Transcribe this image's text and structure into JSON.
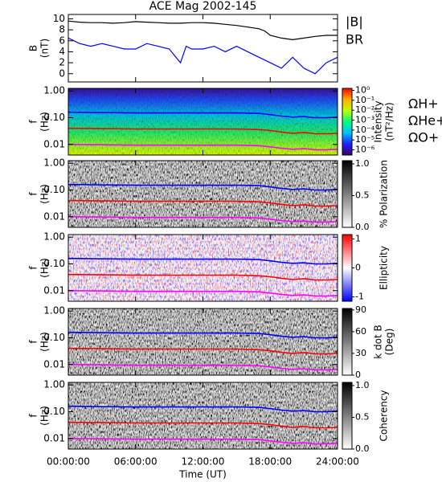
{
  "chart_data": [
    {
      "type": "line",
      "title": "ACE Mag 2002-145",
      "ylabel": [
        "B",
        "(nT)"
      ],
      "xlim": [
        0,
        24
      ],
      "xticks": [
        0,
        6,
        12,
        18,
        24
      ],
      "ylim": [
        -1.5,
        10.8
      ],
      "yticks": [
        0,
        2,
        4,
        6,
        8,
        10
      ],
      "series": [
        {
          "name": "|B|",
          "color": "#000000",
          "x": [
            0,
            1,
            2,
            3,
            4,
            5,
            6,
            7,
            8,
            9,
            10,
            11,
            12,
            13,
            14,
            15,
            16,
            17,
            17.5,
            18,
            19,
            20,
            21,
            22,
            23,
            24
          ],
          "values": [
            9.6,
            9.4,
            9.3,
            9.3,
            9.2,
            9.3,
            9.5,
            9.4,
            9.3,
            9.2,
            9.2,
            9.3,
            9.3,
            9.2,
            9.0,
            8.8,
            8.5,
            8.2,
            7.8,
            7.0,
            6.5,
            6.2,
            6.5,
            6.8,
            7.0,
            7.0
          ]
        },
        {
          "name": "BR",
          "color": "#0000ff",
          "x": [
            0,
            1,
            2,
            3,
            4,
            5,
            6,
            7,
            8,
            9,
            10,
            10.5,
            11,
            12,
            13,
            14,
            15,
            16,
            17,
            18,
            19,
            20,
            21,
            22,
            23,
            24
          ],
          "values": [
            6.5,
            5.5,
            5.0,
            5.5,
            5.0,
            4.5,
            4.5,
            5.5,
            5.0,
            4.5,
            2.0,
            5.0,
            4.5,
            4.5,
            5.0,
            4.0,
            5.0,
            4.0,
            3.0,
            2.0,
            1.0,
            3.0,
            1.0,
            0.0,
            2.0,
            3.0
          ]
        }
      ]
    },
    {
      "type": "spectrogram",
      "ylabel": [
        "f",
        "(Hz)"
      ],
      "xlim": [
        0,
        24
      ],
      "xticks": [
        0,
        6,
        12,
        18,
        24
      ],
      "ylim": [
        0.004,
        1.25
      ],
      "yscale": "log",
      "yticks": [
        {
          "value": 1,
          "label": "1.00"
        },
        {
          "value": 0.1,
          "label": "0.10"
        },
        {
          "value": 0.01,
          "label": "0.01"
        }
      ],
      "colorbar": {
        "label": [
          "Intensity",
          "(nT²/Hz)"
        ],
        "lim": [
          3e-07,
          1.6
        ],
        "scale": "log",
        "ticks": [
          {
            "value": 1,
            "label": "10⁰"
          },
          {
            "value": 0.1,
            "label": "10⁻¹"
          },
          {
            "value": 0.01,
            "label": "10⁻²"
          },
          {
            "value": 0.001,
            "label": "10⁻³"
          },
          {
            "value": 0.0001,
            "label": "10⁻⁴"
          },
          {
            "value": 1e-05,
            "label": "10⁻⁵"
          },
          {
            "value": 1e-06,
            "label": "10⁻⁶"
          }
        ],
        "colormap": [
          "#3a0060",
          "#2020ff",
          "#00c0ff",
          "#00ff80",
          "#c0ff00",
          "#ffb000",
          "#ff0000"
        ]
      },
      "series": [
        {
          "name": "ΩH+",
          "color": "#0000ff",
          "x": [
            0,
            3,
            6,
            9,
            12,
            15,
            17,
            18,
            19,
            20,
            21,
            22,
            23,
            24
          ],
          "values": [
            0.16,
            0.155,
            0.15,
            0.15,
            0.15,
            0.15,
            0.145,
            0.13,
            0.115,
            0.105,
            0.11,
            0.1,
            0.1,
            0.105
          ]
        },
        {
          "name": "ΩHe+",
          "color": "#ff0000",
          "x": [
            0,
            3,
            6,
            9,
            12,
            15,
            17,
            18,
            19,
            20,
            21,
            22,
            23,
            24
          ],
          "values": [
            0.04,
            0.039,
            0.038,
            0.038,
            0.038,
            0.038,
            0.036,
            0.033,
            0.029,
            0.026,
            0.028,
            0.025,
            0.025,
            0.026
          ]
        },
        {
          "name": "ΩO+",
          "color": "#ff00ff",
          "x": [
            0,
            3,
            6,
            9,
            12,
            15,
            17,
            18,
            19,
            20,
            21,
            22,
            23,
            24
          ],
          "values": [
            0.01,
            0.0097,
            0.0094,
            0.0094,
            0.0094,
            0.0094,
            0.009,
            0.0081,
            0.0072,
            0.0066,
            0.0069,
            0.0063,
            0.0063,
            0.0066
          ]
        }
      ]
    },
    {
      "type": "spectrogram",
      "ylabel": [
        "f",
        "(Hz)"
      ],
      "xlim": [
        0,
        24
      ],
      "xticks": [
        0,
        6,
        12,
        18,
        24
      ],
      "ylim": [
        0.004,
        1.25
      ],
      "yscale": "log",
      "yticks": [
        {
          "value": 1,
          "label": "1.00"
        },
        {
          "value": 0.1,
          "label": "0.10"
        },
        {
          "value": 0.01,
          "label": "0.01"
        }
      ],
      "colorbar": {
        "label": [
          "% Polarization"
        ],
        "lim": [
          0,
          1.05
        ],
        "ticks": [
          {
            "value": 0,
            "label": "0.0"
          },
          {
            "value": 0.5,
            "label": "0.5"
          },
          {
            "value": 1,
            "label": "1.0"
          }
        ],
        "colormap": [
          "#ffffff",
          "#000000"
        ]
      },
      "series": [
        {
          "color": "#0000ff",
          "x": [
            0,
            3,
            6,
            9,
            12,
            15,
            17,
            18,
            19,
            20,
            21,
            22,
            23,
            24
          ],
          "values": [
            0.16,
            0.155,
            0.15,
            0.15,
            0.15,
            0.15,
            0.145,
            0.13,
            0.115,
            0.105,
            0.11,
            0.1,
            0.1,
            0.105
          ]
        },
        {
          "color": "#ff0000",
          "x": [
            0,
            3,
            6,
            9,
            12,
            15,
            17,
            18,
            19,
            20,
            21,
            22,
            23,
            24
          ],
          "values": [
            0.04,
            0.039,
            0.038,
            0.038,
            0.038,
            0.038,
            0.036,
            0.033,
            0.029,
            0.026,
            0.028,
            0.025,
            0.025,
            0.026
          ]
        },
        {
          "color": "#ff00ff",
          "x": [
            0,
            3,
            6,
            9,
            12,
            15,
            17,
            18,
            19,
            20,
            21,
            22,
            23,
            24
          ],
          "values": [
            0.01,
            0.0097,
            0.0094,
            0.0094,
            0.0094,
            0.0094,
            0.009,
            0.0081,
            0.0072,
            0.0066,
            0.0069,
            0.0063,
            0.0063,
            0.0066
          ]
        }
      ]
    },
    {
      "type": "spectrogram",
      "ylabel": [
        "f",
        "(Hz)"
      ],
      "xlim": [
        0,
        24
      ],
      "xticks": [
        0,
        6,
        12,
        18,
        24
      ],
      "ylim": [
        0.004,
        1.25
      ],
      "yscale": "log",
      "yticks": [
        {
          "value": 1,
          "label": "1.00"
        },
        {
          "value": 0.1,
          "label": "0.10"
        },
        {
          "value": 0.01,
          "label": "0.01"
        }
      ],
      "colorbar": {
        "label": [
          "Ellipticity"
        ],
        "lim": [
          -1.15,
          1.15
        ],
        "ticks": [
          -1,
          0,
          1
        ],
        "colormap": [
          "#0000ff",
          "#ffffff",
          "#ff0000"
        ]
      },
      "series": [
        {
          "color": "#0000ff",
          "x": [
            0,
            3,
            6,
            9,
            12,
            15,
            17,
            18,
            19,
            20,
            21,
            22,
            23,
            24
          ],
          "values": [
            0.16,
            0.155,
            0.15,
            0.15,
            0.15,
            0.15,
            0.145,
            0.13,
            0.115,
            0.105,
            0.11,
            0.1,
            0.1,
            0.105
          ]
        },
        {
          "color": "#ff0000",
          "x": [
            0,
            3,
            6,
            9,
            12,
            15,
            17,
            18,
            19,
            20,
            21,
            22,
            23,
            24
          ],
          "values": [
            0.04,
            0.039,
            0.038,
            0.038,
            0.038,
            0.038,
            0.036,
            0.033,
            0.029,
            0.026,
            0.028,
            0.025,
            0.025,
            0.026
          ]
        },
        {
          "color": "#ff00ff",
          "x": [
            0,
            3,
            6,
            9,
            12,
            15,
            17,
            18,
            19,
            20,
            21,
            22,
            23,
            24
          ],
          "values": [
            0.01,
            0.0097,
            0.0094,
            0.0094,
            0.0094,
            0.0094,
            0.009,
            0.0081,
            0.0072,
            0.0066,
            0.0069,
            0.0063,
            0.0063,
            0.0066
          ]
        }
      ]
    },
    {
      "type": "spectrogram",
      "ylabel": [
        "f",
        "(Hz)"
      ],
      "xlim": [
        0,
        24
      ],
      "xticks": [
        0,
        6,
        12,
        18,
        24
      ],
      "ylim": [
        0.004,
        1.25
      ],
      "yscale": "log",
      "yticks": [
        {
          "value": 1,
          "label": "1.00"
        },
        {
          "value": 0.1,
          "label": "0.10"
        },
        {
          "value": 0.01,
          "label": "0.01"
        }
      ],
      "colorbar": {
        "label": [
          "k dot B",
          "(Deg)"
        ],
        "lim": [
          0,
          92
        ],
        "ticks": [
          0,
          30,
          60,
          90
        ],
        "colormap": [
          "#ffffff",
          "#000000"
        ]
      },
      "series": [
        {
          "color": "#0000ff",
          "x": [
            0,
            3,
            6,
            9,
            12,
            15,
            17,
            18,
            19,
            20,
            21,
            22,
            23,
            24
          ],
          "values": [
            0.16,
            0.155,
            0.15,
            0.15,
            0.15,
            0.15,
            0.145,
            0.13,
            0.115,
            0.105,
            0.11,
            0.1,
            0.1,
            0.105
          ]
        },
        {
          "color": "#ff0000",
          "x": [
            0,
            3,
            6,
            9,
            12,
            15,
            17,
            18,
            19,
            20,
            21,
            22,
            23,
            24
          ],
          "values": [
            0.04,
            0.039,
            0.038,
            0.038,
            0.038,
            0.038,
            0.036,
            0.033,
            0.029,
            0.026,
            0.028,
            0.025,
            0.025,
            0.026
          ]
        },
        {
          "color": "#ff00ff",
          "x": [
            0,
            3,
            6,
            9,
            12,
            15,
            17,
            18,
            19,
            20,
            21,
            22,
            23,
            24
          ],
          "values": [
            0.01,
            0.0097,
            0.0094,
            0.0094,
            0.0094,
            0.0094,
            0.009,
            0.0081,
            0.0072,
            0.0066,
            0.0069,
            0.0063,
            0.0063,
            0.0066
          ]
        }
      ]
    },
    {
      "type": "spectrogram",
      "ylabel": [
        "f",
        "(Hz)"
      ],
      "xlabel": "Time (UT)",
      "xlim": [
        0,
        24
      ],
      "xticks": [
        {
          "value": 0,
          "label": "00:00:00"
        },
        {
          "value": 6,
          "label": "06:00:00"
        },
        {
          "value": 12,
          "label": "12:00:00"
        },
        {
          "value": 18,
          "label": "18:00:00"
        },
        {
          "value": 24,
          "label": "24:00:00"
        }
      ],
      "ylim": [
        0.004,
        1.25
      ],
      "yscale": "log",
      "yticks": [
        {
          "value": 1,
          "label": "1.00"
        },
        {
          "value": 0.1,
          "label": "0.10"
        },
        {
          "value": 0.01,
          "label": "0.01"
        }
      ],
      "colorbar": {
        "label": [
          "Coherency"
        ],
        "lim": [
          0,
          1.05
        ],
        "ticks": [
          {
            "value": 0,
            "label": "0.0"
          },
          {
            "value": 0.5,
            "label": "0.5"
          },
          {
            "value": 1,
            "label": "1.0"
          }
        ],
        "colormap": [
          "#ffffff",
          "#000000"
        ]
      },
      "series": [
        {
          "color": "#0000ff",
          "x": [
            0,
            3,
            6,
            9,
            12,
            15,
            17,
            18,
            19,
            20,
            21,
            22,
            23,
            24
          ],
          "values": [
            0.16,
            0.155,
            0.15,
            0.15,
            0.15,
            0.15,
            0.145,
            0.13,
            0.115,
            0.105,
            0.11,
            0.1,
            0.1,
            0.105
          ]
        },
        {
          "color": "#ff0000",
          "x": [
            0,
            3,
            6,
            9,
            12,
            15,
            17,
            18,
            19,
            20,
            21,
            22,
            23,
            24
          ],
          "values": [
            0.04,
            0.039,
            0.038,
            0.038,
            0.038,
            0.038,
            0.036,
            0.033,
            0.029,
            0.026,
            0.028,
            0.025,
            0.025,
            0.026
          ]
        },
        {
          "color": "#ff00ff",
          "x": [
            0,
            3,
            6,
            9,
            12,
            15,
            17,
            18,
            19,
            20,
            21,
            22,
            23,
            24
          ],
          "values": [
            0.01,
            0.0097,
            0.0094,
            0.0094,
            0.0094,
            0.0094,
            0.009,
            0.0081,
            0.0072,
            0.0066,
            0.0069,
            0.0063,
            0.0063,
            0.0066
          ]
        }
      ]
    }
  ]
}
